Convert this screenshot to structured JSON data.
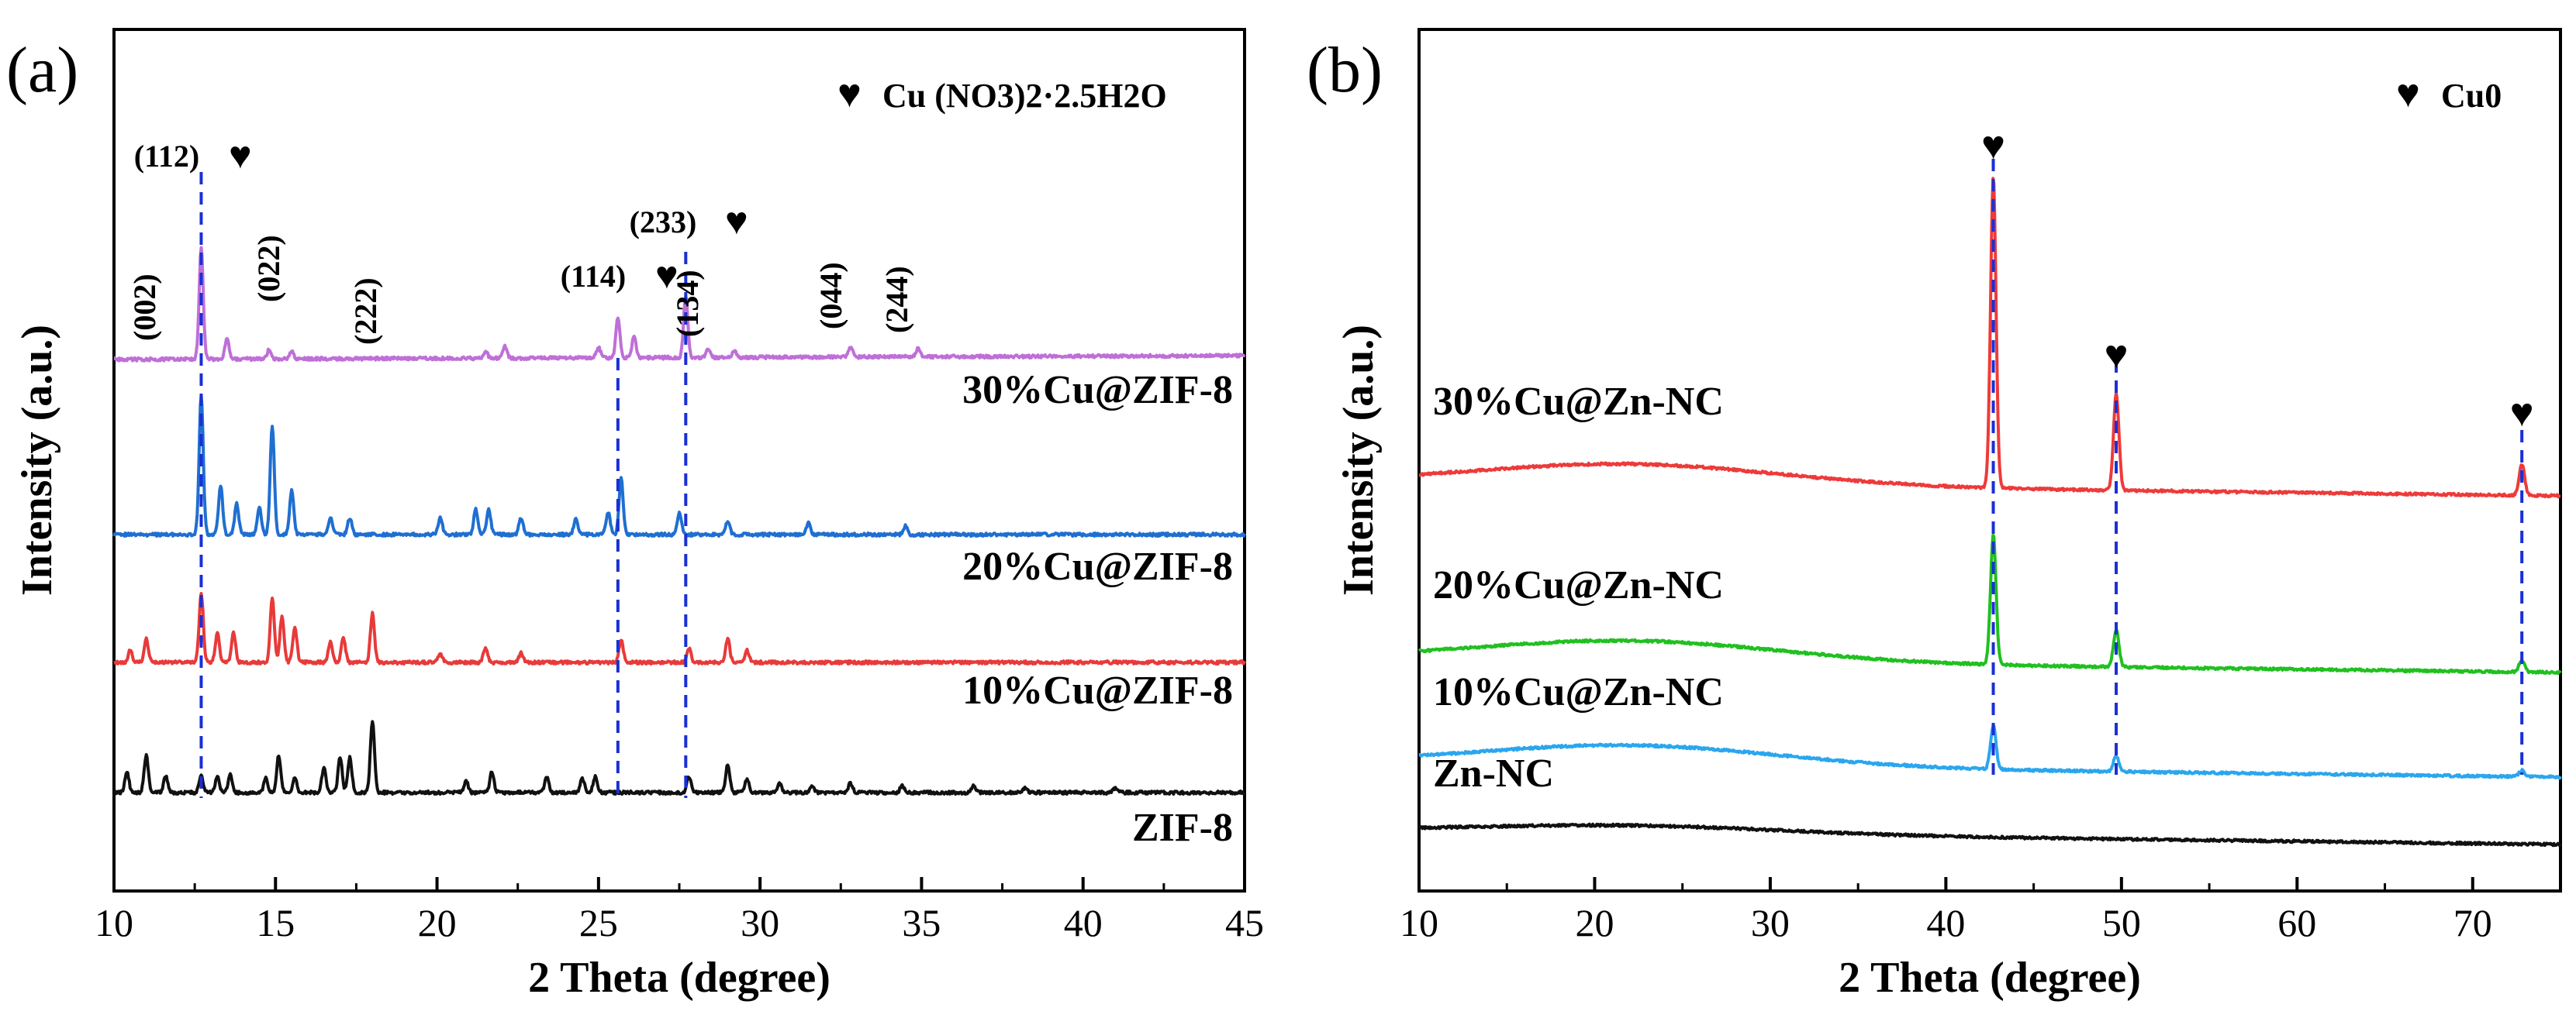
{
  "chart_data": [
    {
      "panel": "(a)",
      "type": "line",
      "xlabel": "2 Theta (degree)",
      "ylabel": "Intensity (a.u.)",
      "xlim": [
        10,
        45
      ],
      "xticks": [
        10,
        15,
        20,
        25,
        30,
        35,
        40,
        45
      ],
      "legend": {
        "symbol": "♥",
        "text": "Cu (NO3)2·2.5H2O",
        "position": "top-right"
      },
      "guide_lines_2theta": [
        12.7,
        25.6,
        27.7
      ],
      "marker_symbol": "♥",
      "series": [
        {
          "name": "30%Cu@ZIF-8",
          "color": "#bf6fd8",
          "baseline": 0.82,
          "peaks": [
            [
              12.7,
              0.62
            ],
            [
              13.5,
              0.12
            ],
            [
              14.8,
              0.05
            ],
            [
              15.5,
              0.04
            ],
            [
              21.5,
              0.04
            ],
            [
              22.1,
              0.07
            ],
            [
              25.0,
              0.06
            ],
            [
              25.6,
              0.22
            ],
            [
              26.1,
              0.12
            ],
            [
              27.7,
              0.35
            ],
            [
              28.4,
              0.05
            ],
            [
              29.2,
              0.04
            ],
            [
              32.8,
              0.06
            ],
            [
              34.9,
              0.05
            ]
          ],
          "annotations": [
            {
              "label": "(002)",
              "x": 11.5
            },
            {
              "label": "(112)",
              "x": 12.7,
              "marker": true
            },
            {
              "label": "(022)",
              "x": 15.1
            },
            {
              "label": "(222)",
              "x": 18.2
            },
            {
              "label": "(114)",
              "x": 25.6,
              "marker": true
            },
            {
              "label": "(233)",
              "x": 27.7,
              "marker": true
            },
            {
              "label": "(134)",
              "x": 28.7
            },
            {
              "label": "(044)",
              "x": 32.7
            },
            {
              "label": "(244)",
              "x": 35.0
            }
          ]
        },
        {
          "name": "20%Cu@ZIF-8",
          "color": "#1f6fd1",
          "baseline": 0.0,
          "peaks": [
            [
              12.7,
              1.0
            ],
            [
              13.3,
              0.35
            ],
            [
              13.8,
              0.22
            ],
            [
              14.5,
              0.2
            ],
            [
              14.9,
              0.78
            ],
            [
              15.5,
              0.32
            ],
            [
              16.7,
              0.12
            ],
            [
              17.3,
              0.12
            ],
            [
              20.1,
              0.12
            ],
            [
              21.2,
              0.18
            ],
            [
              21.6,
              0.18
            ],
            [
              22.6,
              0.12
            ],
            [
              24.3,
              0.12
            ],
            [
              25.3,
              0.16
            ],
            [
              25.7,
              0.4
            ],
            [
              27.5,
              0.16
            ],
            [
              29.0,
              0.1
            ],
            [
              31.5,
              0.08
            ],
            [
              34.5,
              0.06
            ]
          ]
        },
        {
          "name": "10%Cu@ZIF-8",
          "color": "#e83a3a",
          "baseline": 0.0,
          "peaks": [
            [
              10.5,
              0.1
            ],
            [
              11.0,
              0.2
            ],
            [
              12.7,
              0.6
            ],
            [
              13.2,
              0.25
            ],
            [
              13.7,
              0.25
            ],
            [
              14.9,
              0.55
            ],
            [
              15.2,
              0.4
            ],
            [
              15.6,
              0.3
            ],
            [
              16.7,
              0.18
            ],
            [
              17.1,
              0.22
            ],
            [
              18.0,
              0.42
            ],
            [
              20.1,
              0.08
            ],
            [
              21.5,
              0.12
            ],
            [
              22.6,
              0.08
            ],
            [
              25.7,
              0.2
            ],
            [
              27.8,
              0.12
            ],
            [
              29.0,
              0.2
            ],
            [
              29.6,
              0.1
            ]
          ]
        },
        {
          "name": "ZIF-8",
          "color": "#111111",
          "baseline": 0.0,
          "peaks": [
            [
              10.4,
              0.18
            ],
            [
              11.0,
              0.32
            ],
            [
              11.6,
              0.14
            ],
            [
              12.7,
              0.14
            ],
            [
              13.2,
              0.14
            ],
            [
              13.6,
              0.16
            ],
            [
              14.7,
              0.12
            ],
            [
              15.1,
              0.32
            ],
            [
              15.6,
              0.12
            ],
            [
              16.5,
              0.22
            ],
            [
              17.0,
              0.3
            ],
            [
              17.3,
              0.3
            ],
            [
              18.0,
              0.62
            ],
            [
              20.9,
              0.1
            ],
            [
              21.7,
              0.18
            ],
            [
              23.4,
              0.14
            ],
            [
              24.5,
              0.12
            ],
            [
              24.9,
              0.14
            ],
            [
              27.8,
              0.14
            ],
            [
              29.0,
              0.24
            ],
            [
              29.6,
              0.12
            ],
            [
              30.6,
              0.08
            ],
            [
              31.6,
              0.06
            ],
            [
              32.8,
              0.08
            ],
            [
              34.4,
              0.06
            ],
            [
              36.6,
              0.06
            ],
            [
              38.2,
              0.04
            ],
            [
              41.0,
              0.04
            ]
          ]
        }
      ]
    },
    {
      "panel": "(b)",
      "type": "line",
      "xlabel": "2 Theta (degree)",
      "ylabel": "Intensity (a.u.)",
      "xlim": [
        10,
        75
      ],
      "xticks": [
        10,
        20,
        30,
        40,
        50,
        60,
        70
      ],
      "legend": {
        "symbol": "♥",
        "text": "Cu0",
        "position": "top-right"
      },
      "guide_lines_2theta": [
        42.7,
        49.7,
        72.8
      ],
      "marker_symbol": "♥",
      "series": [
        {
          "name": "30%Cu@Zn-NC",
          "color": "#ee3a3a",
          "hump": 0.08,
          "peaks": [
            [
              42.7,
              1.0
            ],
            [
              49.7,
              0.31
            ],
            [
              72.8,
              0.1
            ]
          ]
        },
        {
          "name": "20%Cu@Zn-NC",
          "color": "#20c020",
          "hump": 0.08,
          "peaks": [
            [
              42.7,
              0.42
            ],
            [
              49.7,
              0.12
            ],
            [
              72.8,
              0.04
            ]
          ]
        },
        {
          "name": "10%Cu@Zn-NC",
          "color": "#2aa6ee",
          "hump": 0.08,
          "peaks": [
            [
              42.7,
              0.14
            ],
            [
              49.7,
              0.05
            ],
            [
              72.8,
              0.02
            ]
          ]
        },
        {
          "name": "Zn-NC",
          "color": "#111111",
          "hump": 0.03,
          "peaks": []
        }
      ]
    }
  ]
}
